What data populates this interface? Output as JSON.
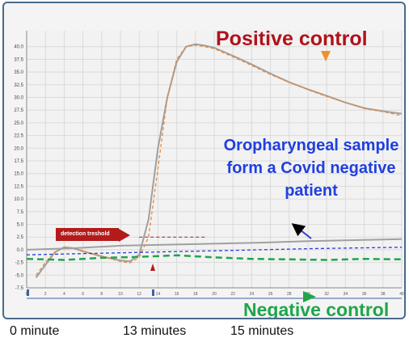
{
  "annotations": {
    "positive_control": "Positive control",
    "sample_description": "Oropharyngeal sample form a Covid negative patient",
    "negative_control": "Negative control",
    "detection_threshold": "detection treshold",
    "time_labels": [
      "0 minute",
      "13 minutes",
      "15 minutes"
    ]
  },
  "colors": {
    "positive": "#b0121b",
    "sample_text": "#1f3fe0",
    "negative": "#1fa64a",
    "threshold": "#b31b1b",
    "gray_curve": "#a0a0a0",
    "orange_curve": "#e8893a",
    "blue_curve": "#2a3fd0",
    "arrow_orange": "#f0902e"
  },
  "chart_data": {
    "type": "line",
    "xlim": [
      0,
      40
    ],
    "ylim": [
      -7.5,
      42.5
    ],
    "yticks": [
      "-7.5",
      "-5.0",
      "-2.5",
      "0.0",
      "2.5",
      "5.0",
      "7.5",
      "10.0",
      "12.5",
      "15.0",
      "17.5",
      "20.0",
      "22.5",
      "25.0",
      "27.5",
      "30.0",
      "32.5",
      "35.0",
      "37.5",
      "40.0"
    ],
    "xticks": [
      "0",
      "2",
      "4",
      "6",
      "8",
      "10",
      "12",
      "14",
      "16",
      "18",
      "20",
      "22",
      "24",
      "26",
      "28",
      "30",
      "32",
      "34",
      "36",
      "38",
      "40"
    ],
    "grid": true,
    "threshold": 2.5,
    "series": [
      {
        "style": "solid",
        "color": "gray",
        "x": [
          1,
          2,
          3,
          4,
          5,
          6,
          7,
          8,
          9,
          10,
          11,
          12,
          13,
          14,
          15,
          16,
          17,
          18,
          19,
          20,
          22,
          24,
          26,
          28,
          30,
          32,
          34,
          36,
          38,
          40
        ],
        "y": [
          -5.5,
          -3,
          -0.5,
          0.5,
          0.3,
          -0.3,
          -0.8,
          -1.3,
          -1.7,
          -2.1,
          -2.3,
          -1,
          6,
          20,
          30,
          37,
          40,
          40.5,
          40.2,
          39.8,
          38.2,
          36.5,
          34.7,
          33,
          31.6,
          30.3,
          29,
          27.9,
          27.3,
          26.8
        ]
      },
      {
        "style": "dashed",
        "color": "orange",
        "x": [
          1,
          2,
          3,
          4,
          5,
          6,
          7,
          8,
          9,
          10,
          11,
          12,
          13,
          14,
          15,
          16,
          17,
          18,
          19,
          20,
          22,
          24,
          26,
          28,
          30,
          32,
          34,
          36,
          38,
          40
        ],
        "y": [
          -5,
          -2.5,
          -0.5,
          0.5,
          0.4,
          -0.2,
          -0.8,
          -1.3,
          -1.8,
          -2.3,
          -2.6,
          -1.5,
          2.5,
          16,
          30,
          37.5,
          40,
          40.3,
          40,
          39.6,
          38,
          36.3,
          34.5,
          33,
          31.5,
          30.2,
          29,
          27.8,
          27.2,
          26.4
        ]
      },
      {
        "style": "solid",
        "color": "gray",
        "x": [
          0,
          5,
          10,
          15,
          20,
          25,
          30,
          35,
          40
        ],
        "y": [
          0,
          0.3,
          0.8,
          1,
          1.2,
          1.4,
          1.7,
          1.9,
          2.1
        ]
      },
      {
        "style": "dashed",
        "color": "blue",
        "x": [
          0,
          5,
          10,
          15,
          20,
          25,
          30,
          35,
          40
        ],
        "y": [
          -1,
          -0.8,
          -0.6,
          -0.4,
          -0.2,
          0,
          0.2,
          0.35,
          0.5
        ]
      },
      {
        "style": "dashed",
        "color": "green",
        "x": [
          0,
          4,
          8,
          12,
          16,
          20,
          24,
          28,
          32,
          36,
          40
        ],
        "y": [
          -1.8,
          -2,
          -1.6,
          -1.4,
          -1.1,
          -1.5,
          -1.8,
          -1.9,
          -2,
          -1.8,
          -1.9
        ]
      }
    ]
  }
}
